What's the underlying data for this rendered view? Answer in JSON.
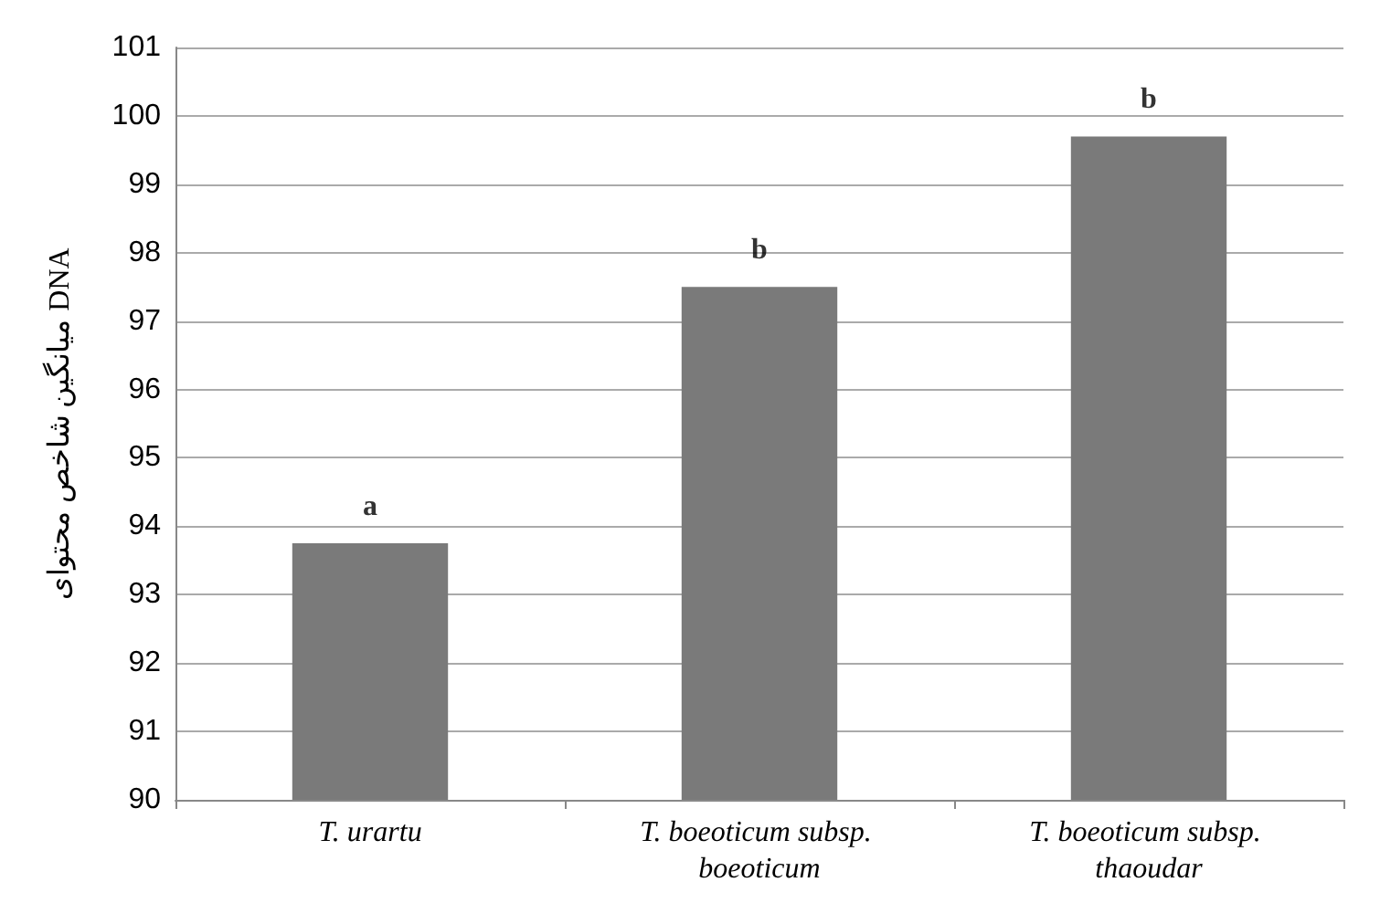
{
  "chart_data": {
    "type": "bar",
    "ylabel": "میانگین شاخص محتوای DNA",
    "categories": [
      "T. urartu",
      "T. boeoticum subsp. boeoticum",
      "T. boeoticum subsp. thaoudar"
    ],
    "values": [
      93.75,
      97.5,
      99.7
    ],
    "color": "#7a7a7a",
    "ylim": [
      90,
      101
    ],
    "yticks": [
      90,
      91,
      92,
      93,
      94,
      95,
      96,
      97,
      98,
      99,
      100,
      101
    ],
    "grid": "y",
    "annotations": [
      {
        "text": "a",
        "x": "T. urartu",
        "y": 93.75
      },
      {
        "text": "b",
        "x": "T. boeoticum subsp. boeoticum",
        "y": 97.5
      },
      {
        "text": "b",
        "x": "T. boeoticum subsp. thaoudar",
        "y": 99.7
      }
    ]
  }
}
